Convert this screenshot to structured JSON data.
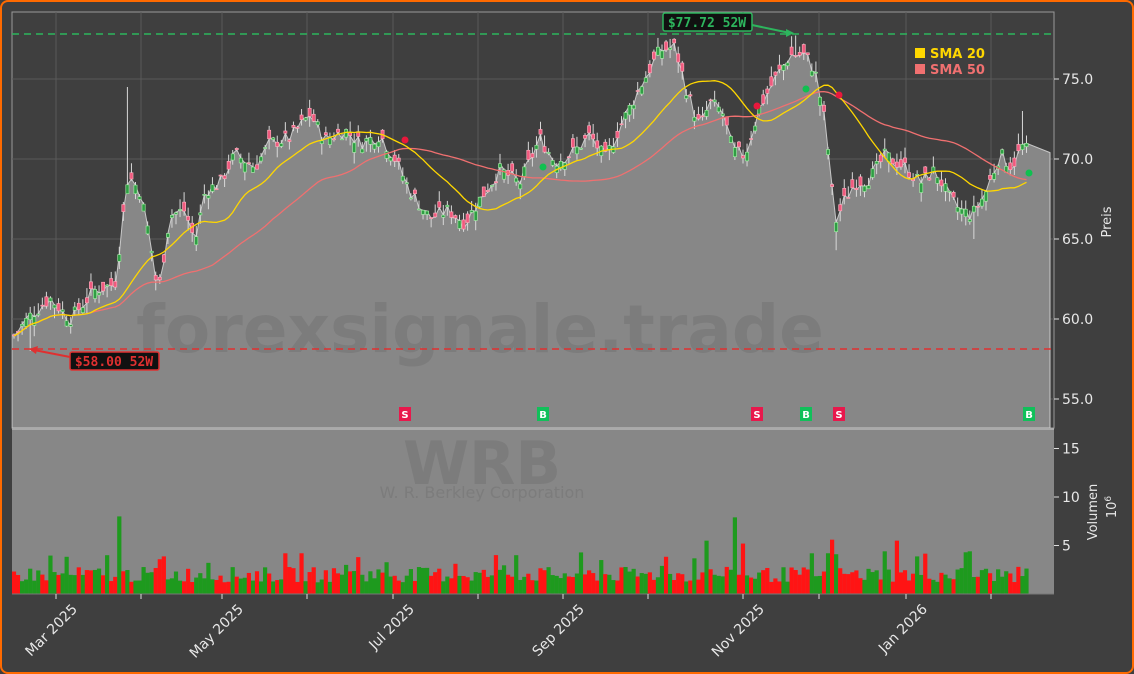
{
  "chart_data": {
    "type": "candlestick",
    "ticker": "WRB",
    "company": "W. R. Berkley Corporation",
    "watermark": "forexsignale.trade",
    "price_axis": {
      "label": "Preis",
      "ticks": [
        "55.0",
        "60.0",
        "65.0",
        "70.0",
        "75.0"
      ],
      "ylim": [
        52.0,
        79.0
      ]
    },
    "volume_axis": {
      "label": "Volumen",
      "multiplier": "10^6",
      "ticks": [
        "5",
        "10",
        "15"
      ],
      "ylim": [
        0,
        17
      ]
    },
    "x_axis": {
      "ticks": [
        "Mar 2025",
        "May 2025",
        "Jul 2025",
        "Sep 2025",
        "Nov 2025",
        "Jan 2026"
      ]
    },
    "legend": [
      {
        "label": "SMA 20",
        "color": "#ffd700"
      },
      {
        "label": "SMA 50",
        "color": "#f07070"
      }
    ],
    "high_52w": {
      "label": "$77.72 52W",
      "value": 77.72,
      "color": "#2db55d"
    },
    "low_52w": {
      "label": "$58.00 52W",
      "value": 58.0,
      "color": "#e03030"
    },
    "signals": [
      {
        "type": "S",
        "approx_date": "Jul 2025"
      },
      {
        "type": "B",
        "approx_date": "Aug 2025"
      },
      {
        "type": "S",
        "approx_date": "Nov 2025"
      },
      {
        "type": "B",
        "approx_date": "Nov 2025"
      },
      {
        "type": "S",
        "approx_date": "Dec 2025"
      },
      {
        "type": "B",
        "approx_date": "Feb 2026"
      }
    ],
    "close_series_approx": {
      "x": [
        "Feb 2025",
        "Mar 2025",
        "Apr 2025",
        "May 2025",
        "Jun 2025",
        "Jul 2025",
        "Aug 2025",
        "Sep 2025",
        "Oct 2025",
        "Nov 2025",
        "Dec 2025",
        "Jan 2026",
        "Feb 2026"
      ],
      "close": [
        58.8,
        61.5,
        66.0,
        70.5,
        71.5,
        68.0,
        69.5,
        70.5,
        76.0,
        73.5,
        68.5,
        68.0,
        70.4
      ]
    },
    "sma20_approx": [
      58.5,
      60.5,
      64.0,
      68.5,
      71.5,
      68.5,
      68.2,
      70.5,
      74.5,
      73.5,
      72.0,
      69.5,
      69.0
    ],
    "sma50_approx": [
      58.0,
      59.0,
      61.5,
      65.5,
      69.5,
      70.5,
      69.5,
      69.3,
      72.0,
      73.5,
      74.0,
      71.0,
      69.0
    ],
    "last_close": 70.4
  }
}
